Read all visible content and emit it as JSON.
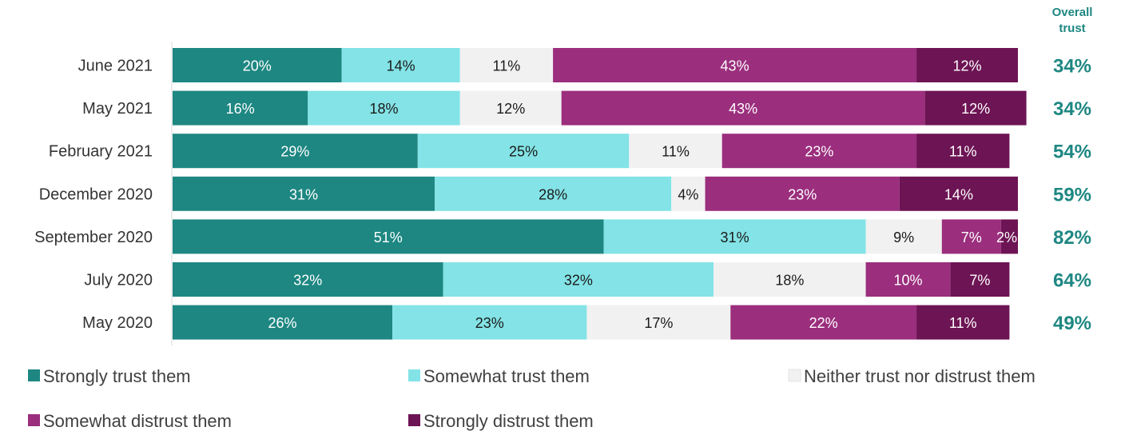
{
  "chart_data": {
    "type": "bar",
    "orientation": "horizontal",
    "stacked": true,
    "title": "",
    "xlabel": "",
    "ylabel": "",
    "xlim": [
      0,
      100
    ],
    "categories": [
      "June 2021",
      "May 2021",
      "February 2021",
      "December 2020",
      "September 2020",
      "July 2020",
      "May 2020"
    ],
    "series": [
      {
        "name": "Strongly trust them",
        "color": "#1e8782",
        "text_color": "#ffffff",
        "values": [
          20,
          16,
          29,
          31,
          51,
          32,
          26
        ],
        "labels": [
          "20%",
          "16%",
          "29%",
          "31%",
          "51%",
          "32%",
          "26%"
        ]
      },
      {
        "name": "Somewhat trust them",
        "color": "#83e3e6",
        "text_color": "#1a1a1a",
        "values": [
          14,
          18,
          25,
          28,
          31,
          32,
          23
        ],
        "labels": [
          "14%",
          "18%",
          "25%",
          "28%",
          "31%",
          "32%",
          "23%"
        ]
      },
      {
        "name": "Neither trust nor distrust them",
        "color": "#f1f1f1",
        "text_color": "#1a1a1a",
        "values": [
          11,
          12,
          11,
          4,
          9,
          18,
          17
        ],
        "labels": [
          "11%",
          "12%",
          "11%",
          "4%",
          "9%",
          "18%",
          "17%"
        ]
      },
      {
        "name": "Somewhat distrust them",
        "color": "#9b2e7d",
        "text_color": "#ffffff",
        "values": [
          43,
          43,
          23,
          23,
          7,
          10,
          22
        ],
        "labels": [
          "43%",
          "43%",
          "23%",
          "23%",
          "7%",
          "10%",
          "22%"
        ]
      },
      {
        "name": "Strongly distrust them",
        "color": "#6d1454",
        "text_color": "#ffffff",
        "values": [
          12,
          12,
          11,
          14,
          2,
          7,
          11
        ],
        "labels": [
          "12%",
          "12%",
          "11%",
          "14%",
          "2%",
          "7%",
          "11%"
        ]
      }
    ],
    "overall_header": [
      "Overall",
      "trust"
    ],
    "overall_values": [
      "34%",
      "34%",
      "54%",
      "59%",
      "82%",
      "64%",
      "49%"
    ],
    "overall_color": "#1e8782",
    "legend_position": "bottom",
    "grid": false
  }
}
